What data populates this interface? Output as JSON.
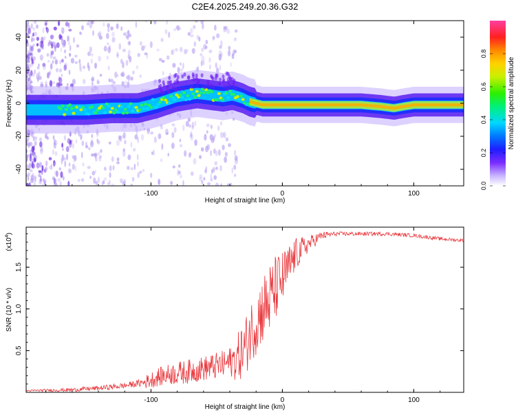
{
  "title": "C2E4.2025.249.20.36.G32",
  "chart_data": [
    {
      "type": "heatmap",
      "xlabel": "Height of straight line (km)",
      "ylabel": "Frequency (Hz)",
      "xlim": [
        -195,
        138
      ],
      "ylim": [
        -50,
        50
      ],
      "xticks": [
        -100,
        0,
        100
      ],
      "yticks": [
        -40,
        -20,
        0,
        20,
        40
      ],
      "colorbar": {
        "label": "Normalized spectral amplitude",
        "range": [
          0,
          1
        ],
        "ticks": [
          0.0,
          0.2,
          0.4,
          0.6,
          0.8
        ],
        "tick_labels": [
          "0.0",
          "0.2",
          "0.4",
          "0.6",
          "0.8"
        ]
      },
      "ridge": {
        "x": [
          -195,
          -170,
          -150,
          -130,
          -110,
          -95,
          -80,
          -65,
          -55,
          -45,
          -38,
          -30,
          -25,
          -20,
          -15,
          0,
          20,
          40,
          60,
          75,
          85,
          92,
          100,
          120,
          138
        ],
        "freq": [
          -4,
          -4,
          -4,
          -3,
          -3,
          0,
          4,
          6,
          5,
          4,
          5,
          3,
          1,
          0,
          -1,
          -1,
          -1,
          -1,
          -1,
          -2,
          -3,
          -2,
          -1,
          -1,
          -1
        ]
      }
    },
    {
      "type": "line",
      "xlabel": "Height of straight line (km)",
      "ylabel": "SNR (10 * v/v)",
      "scale_note": "(x10",
      "scale_exp": "4",
      "xlim": [
        -195,
        138
      ],
      "ylim": [
        0,
        1.98
      ],
      "xticks": [
        -100,
        0,
        100
      ],
      "yticks": [
        0.5,
        1.0,
        1.5
      ],
      "ytick_labels": [
        "0.5",
        "1.0",
        "1.5"
      ],
      "color": "#e8353a",
      "envelope": {
        "x": [
          -195,
          -160,
          -140,
          -120,
          -105,
          -95,
          -85,
          -75,
          -65,
          -55,
          -45,
          -35,
          -28,
          -25,
          -20,
          -15,
          -10,
          -5,
          0,
          5,
          10,
          20,
          30,
          40,
          60,
          80,
          100,
          120,
          138
        ],
        "y": [
          0.02,
          0.03,
          0.05,
          0.08,
          0.12,
          0.18,
          0.22,
          0.24,
          0.27,
          0.3,
          0.33,
          0.4,
          0.55,
          0.7,
          0.85,
          1.0,
          1.1,
          1.25,
          1.35,
          1.5,
          1.65,
          1.78,
          1.88,
          1.9,
          1.9,
          1.9,
          1.88,
          1.84,
          1.82
        ]
      },
      "noise": {
        "x": [
          -195,
          -110,
          -100,
          -80,
          -60,
          -40,
          -30,
          -20,
          -10,
          0,
          10,
          20,
          30,
          40,
          138
        ],
        "amp": [
          0.01,
          0.04,
          0.1,
          0.14,
          0.15,
          0.18,
          0.35,
          0.4,
          0.45,
          0.35,
          0.2,
          0.1,
          0.05,
          0.025,
          0.02
        ]
      }
    }
  ]
}
